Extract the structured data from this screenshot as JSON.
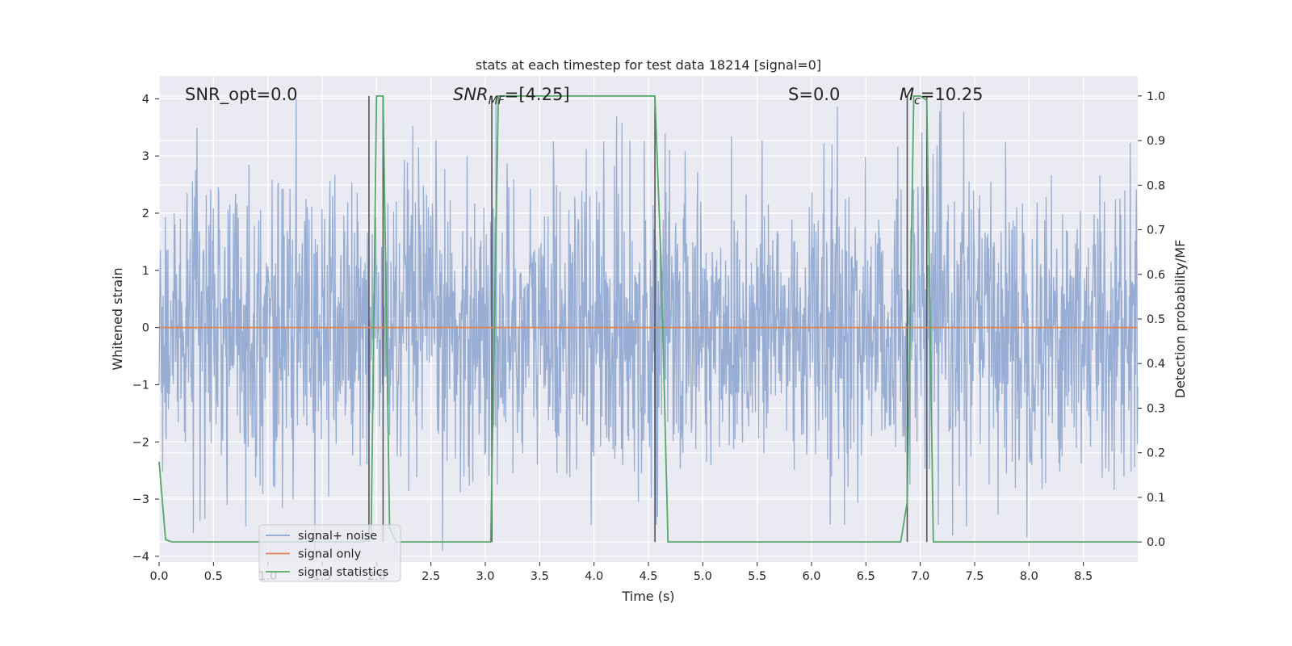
{
  "chart_data": {
    "type": "line",
    "title": "stats at each timestep for test data 18214 [signal=0]",
    "xlabel": "Time (s)",
    "ylabel": "Whitened strain",
    "y2label": "Detection probability/MF",
    "xlim": [
      0,
      9
    ],
    "ylim": [
      -4.1,
      4.4
    ],
    "y2lim": [
      -0.045,
      1.045
    ],
    "x_ticks": [
      "0.0",
      "0.5",
      "1.0",
      "1.5",
      "2.0",
      "2.5",
      "3.0",
      "3.5",
      "4.0",
      "4.5",
      "5.0",
      "5.5",
      "6.0",
      "6.5",
      "7.0",
      "7.5",
      "8.0",
      "8.5"
    ],
    "y_ticks": [
      "−4",
      "−3",
      "−2",
      "−1",
      "0",
      "1",
      "2",
      "3",
      "4"
    ],
    "y2_ticks": [
      "0.0",
      "0.1",
      "0.2",
      "0.3",
      "0.4",
      "0.5",
      "0.6",
      "0.7",
      "0.8",
      "0.9",
      "1.0"
    ],
    "grid": true,
    "legend_position": "lower-left",
    "annotations": [
      {
        "text": "SNR_opt=0.0"
      },
      {
        "text": "SNR",
        "sub": "MF",
        "suffix": "=[4.25]"
      },
      {
        "text": "S",
        "suffix": "=0.0"
      },
      {
        "text": "M",
        "sub": "c",
        "suffix": "=10.25"
      }
    ],
    "series": [
      {
        "name": "signal+ noise",
        "color": "#8fa6cf",
        "style": "noise",
        "noise_amplitude": 1.3
      },
      {
        "name": "signal only",
        "color": "#dd8452",
        "x": [
          0,
          9
        ],
        "y": [
          0,
          0
        ]
      },
      {
        "name": "signal statistics",
        "color": "#55a868",
        "axis": "right",
        "x": [
          0.0,
          0.06,
          0.12,
          1.88,
          1.95,
          2.0,
          2.06,
          2.12,
          2.18,
          3.05,
          3.12,
          4.56,
          4.62,
          4.68,
          6.82,
          6.88,
          6.94,
          7.0,
          7.06,
          7.12,
          9.0
        ],
        "y": [
          0.18,
          0.005,
          0.0,
          0.0,
          0.01,
          1.0,
          1.0,
          0.03,
          0.0,
          0.0,
          1.0,
          1.0,
          0.6,
          0.0,
          0.0,
          0.09,
          1.0,
          1.0,
          0.99,
          0.0,
          0.0
        ]
      },
      {
        "name": "",
        "color": "#555555",
        "style": "vlines",
        "axis": "right",
        "x": [
          1.93,
          2.06,
          3.06,
          4.56,
          6.88,
          7.06
        ],
        "y": [
          1.0,
          1.0,
          1.0,
          1.0,
          1.0,
          1.0
        ]
      }
    ]
  }
}
